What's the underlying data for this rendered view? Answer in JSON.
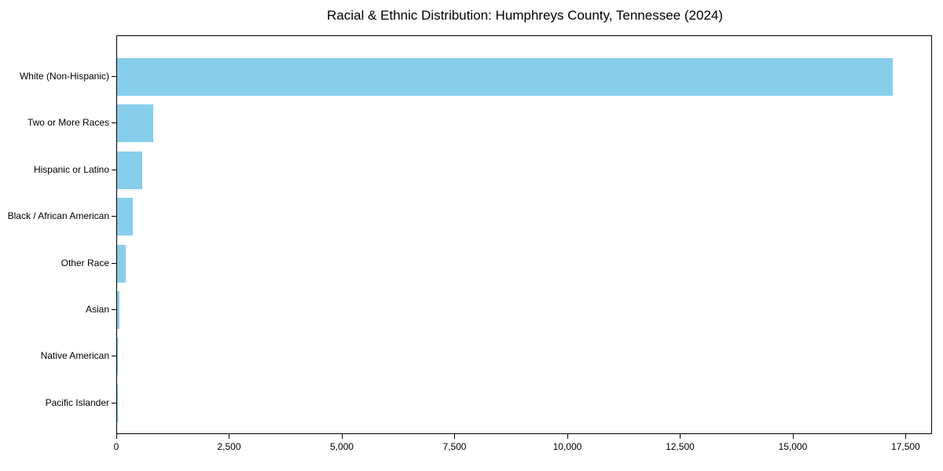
{
  "chart_data": {
    "type": "bar",
    "orientation": "horizontal",
    "title": "Racial & Ethnic Distribution: Humphreys County, Tennessee (2024)",
    "xlabel": "",
    "ylabel": "",
    "categories": [
      "White (Non-Hispanic)",
      "Two or More Races",
      "Hispanic or Latino",
      "Black / African American",
      "Other Race",
      "Asian",
      "Native American",
      "Pacific Islander"
    ],
    "values": [
      17200,
      800,
      550,
      350,
      200,
      60,
      20,
      10
    ],
    "xlim": [
      0,
      18085
    ],
    "xticks": [
      {
        "value": 0,
        "label": "0"
      },
      {
        "value": 2500,
        "label": "2,500"
      },
      {
        "value": 5000,
        "label": "5,000"
      },
      {
        "value": 7500,
        "label": "7,500"
      },
      {
        "value": 10000,
        "label": "10,000"
      },
      {
        "value": 12500,
        "label": "12,500"
      },
      {
        "value": 15000,
        "label": "15,000"
      },
      {
        "value": 17500,
        "label": "17,500"
      }
    ],
    "bar_color": "#87CEEB",
    "axis_color": "#000000",
    "grid": false,
    "legend": "none"
  }
}
